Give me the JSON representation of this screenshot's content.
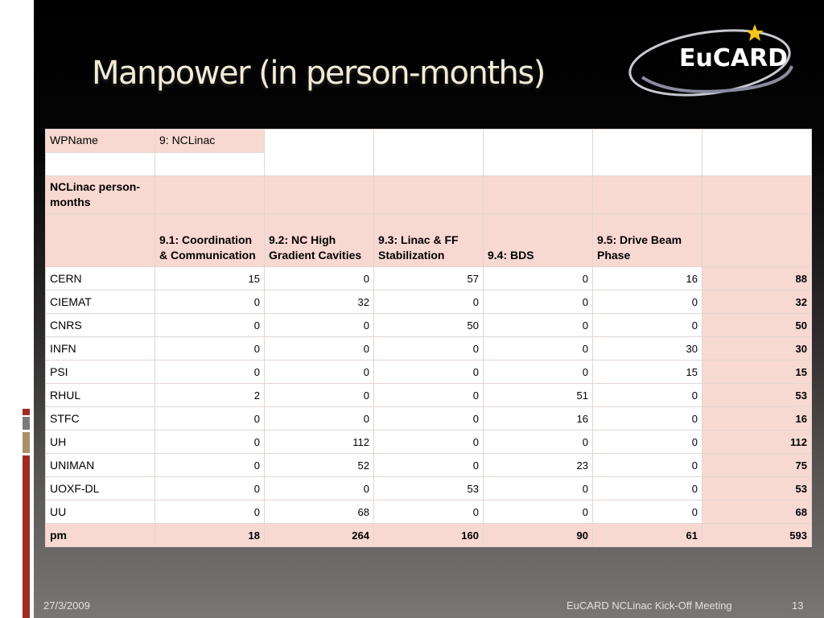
{
  "slide": {
    "title": "Manpower (in person-months)",
    "logo_text": "EuCARD"
  },
  "table": {
    "wp_label": "WPName",
    "wp_value": "9: NCLinac",
    "section_label": "NCLinac person-months",
    "columns": [
      "9.1: Coordination & Communication",
      "9.2: NC High Gradient Cavities",
      "9.3: Linac & FF Stabilization",
      "9.4: BDS",
      "9.5: Drive Beam Phase"
    ],
    "rows": [
      {
        "name": "CERN",
        "values": [
          "15",
          "0",
          "57",
          "0",
          "16"
        ],
        "total": "88"
      },
      {
        "name": "CIEMAT",
        "values": [
          "0",
          "32",
          "0",
          "0",
          "0"
        ],
        "total": "32"
      },
      {
        "name": "CNRS",
        "values": [
          "0",
          "0",
          "50",
          "0",
          "0"
        ],
        "total": "50"
      },
      {
        "name": "INFN",
        "values": [
          "0",
          "0",
          "0",
          "0",
          "30"
        ],
        "total": "30"
      },
      {
        "name": "PSI",
        "values": [
          "0",
          "0",
          "0",
          "0",
          "15"
        ],
        "total": "15"
      },
      {
        "name": "RHUL",
        "values": [
          "2",
          "0",
          "0",
          "51",
          "0"
        ],
        "total": "53"
      },
      {
        "name": "STFC",
        "values": [
          "0",
          "0",
          "0",
          "16",
          "0"
        ],
        "total": "16"
      },
      {
        "name": "UH",
        "values": [
          "0",
          "112",
          "0",
          "0",
          "0"
        ],
        "total": "112"
      },
      {
        "name": "UNIMAN",
        "values": [
          "0",
          "52",
          "0",
          "23",
          "0"
        ],
        "total": "75"
      },
      {
        "name": "UOXF-DL",
        "values": [
          "0",
          "0",
          "53",
          "0",
          "0"
        ],
        "total": "53"
      },
      {
        "name": "UU",
        "values": [
          "0",
          "68",
          "0",
          "0",
          "0"
        ],
        "total": "68"
      }
    ],
    "total_row": {
      "name": "pm",
      "values": [
        "18",
        "264",
        "160",
        "90",
        "61"
      ],
      "total": "593"
    }
  },
  "footer": {
    "date": "27/3/2009",
    "meeting": "EuCARD NCLinac Kick-Off Meeting",
    "page": "13"
  },
  "colors": {
    "header_fill": "#f8d9d1",
    "title_color": "#f2ecd6",
    "accent_red": "#9e2a22",
    "star_yellow": "#f5c518"
  }
}
